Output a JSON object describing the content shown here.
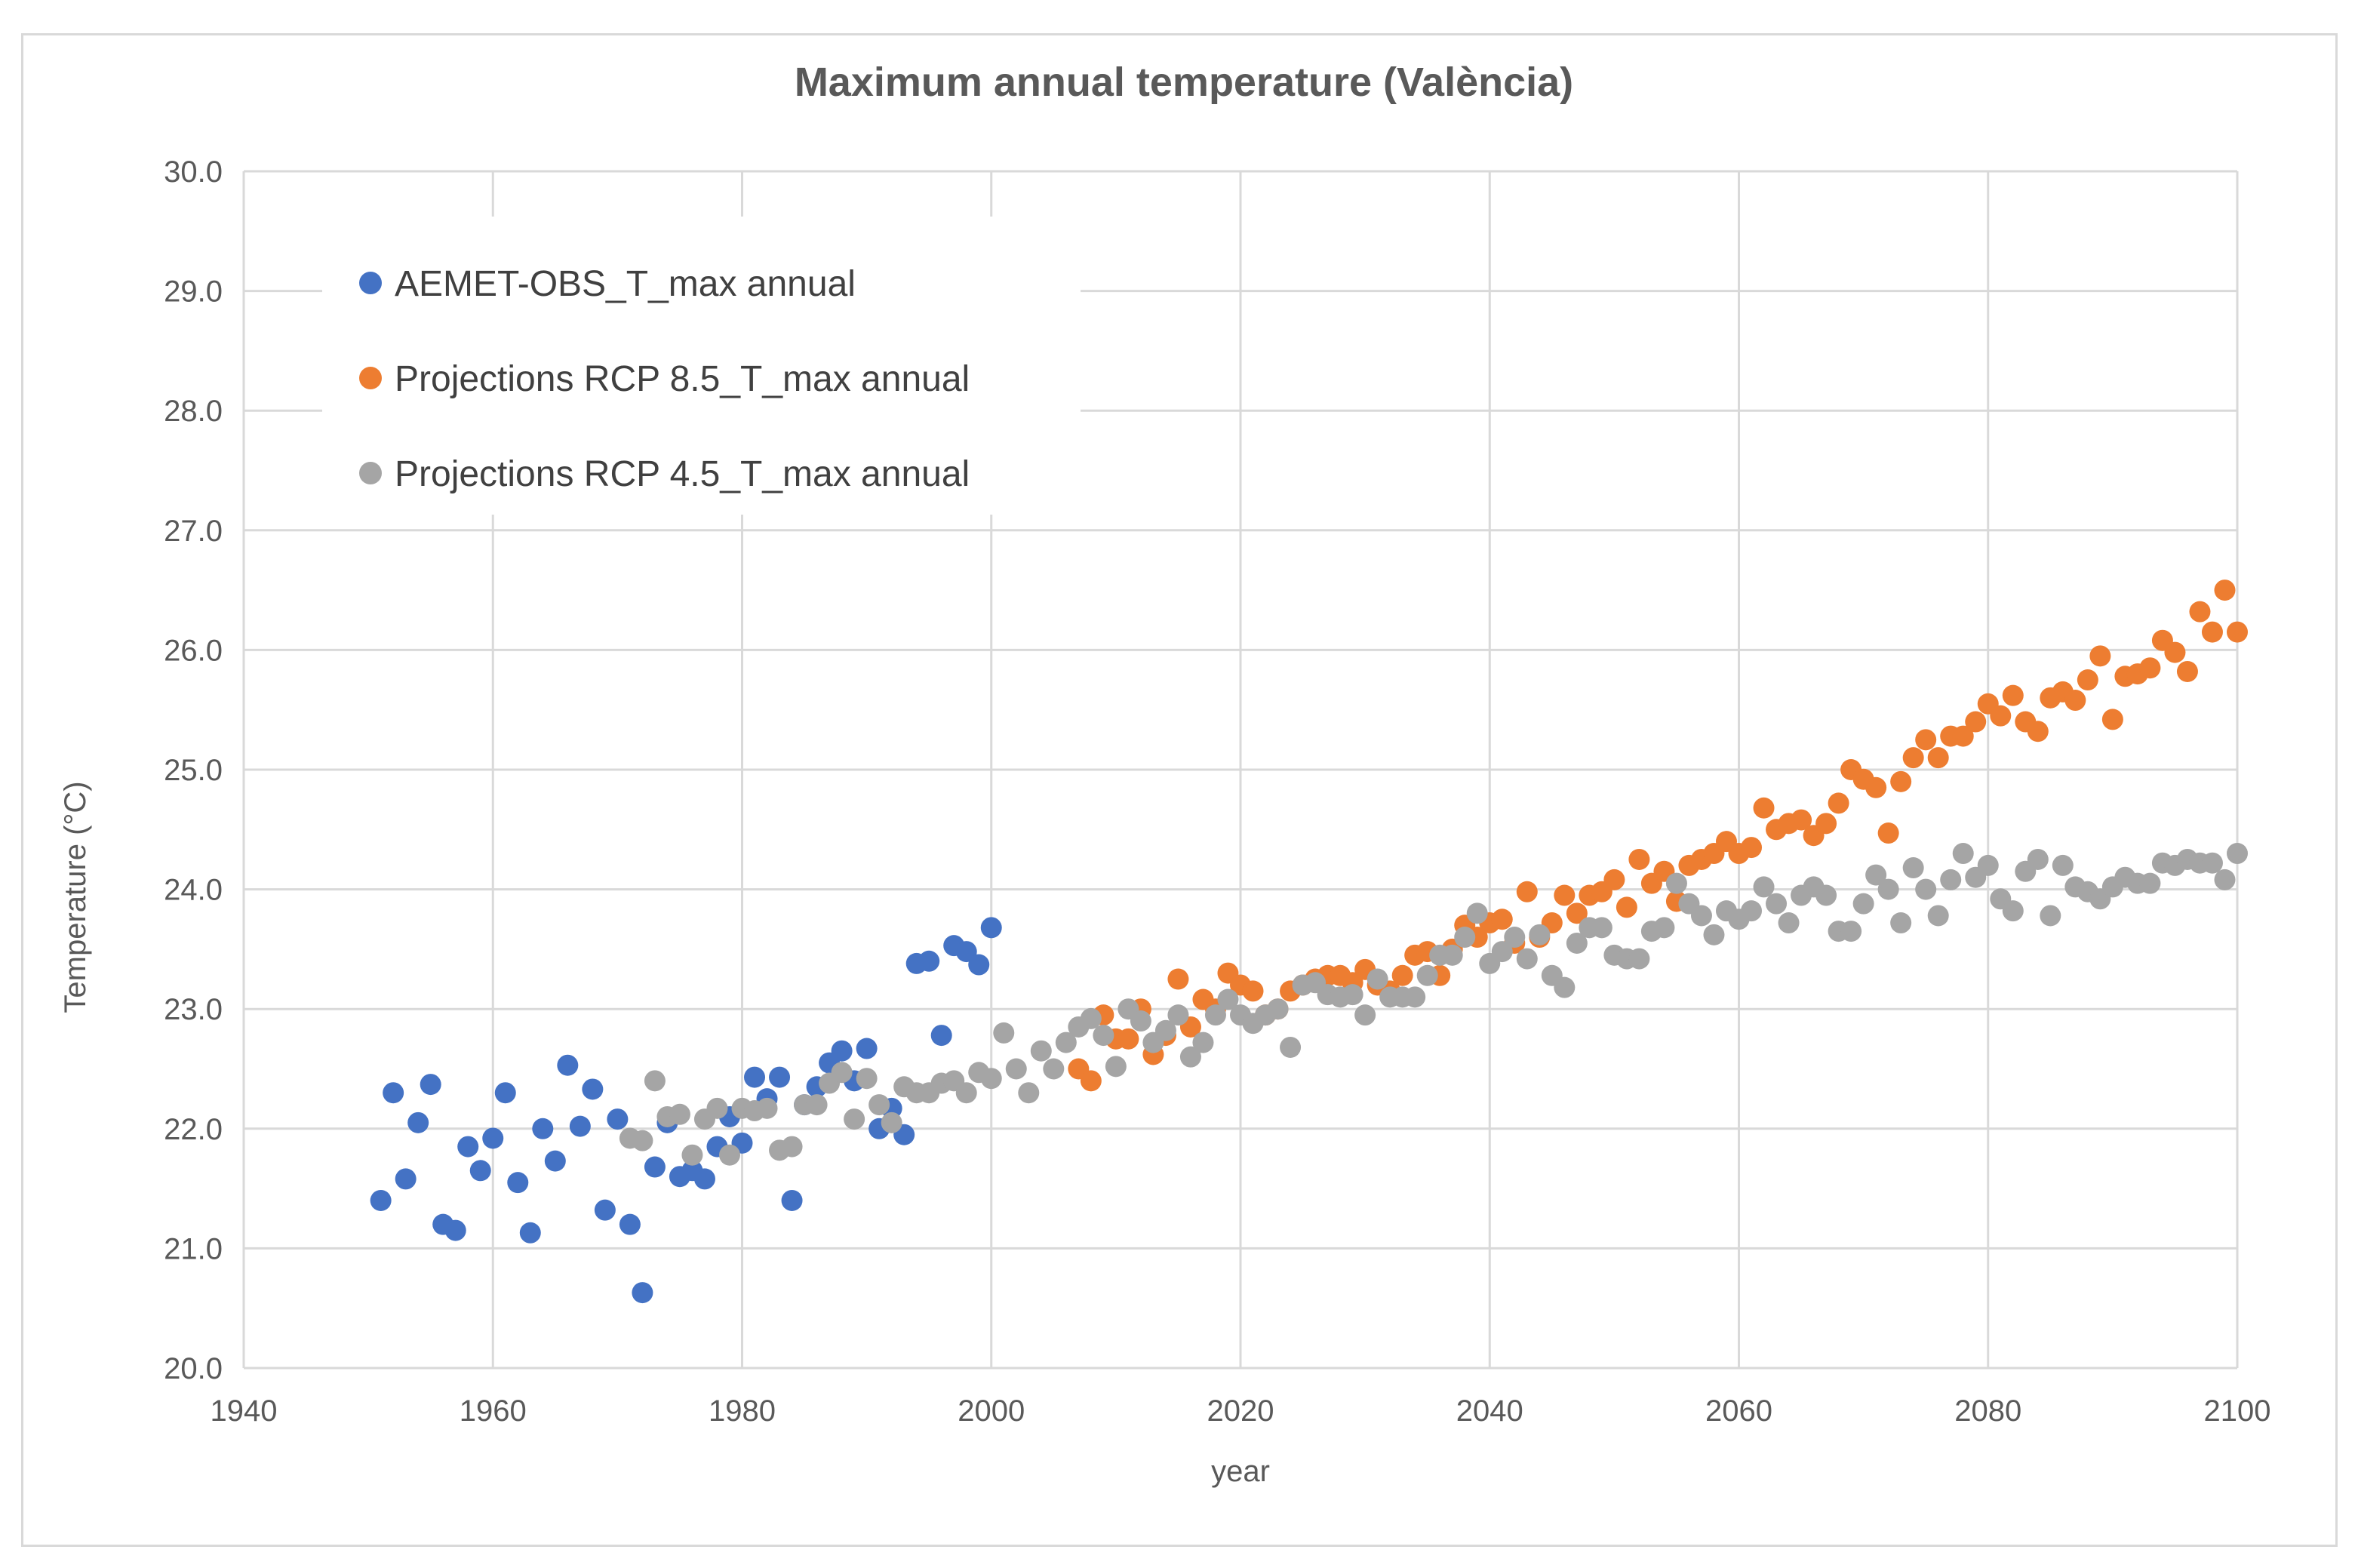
{
  "chart_data": {
    "type": "scatter",
    "title": "Maximum annual temperature (València)",
    "xlabel": "year",
    "ylabel": "Temperature (°C)",
    "xlim": [
      1940,
      2100
    ],
    "ylim": [
      20.0,
      30.0
    ],
    "x_ticks": [
      "1940",
      "1960",
      "1980",
      "2000",
      "2020",
      "2040",
      "2060",
      "2080",
      "2100"
    ],
    "y_ticks": [
      "20.0",
      "21.0",
      "22.0",
      "23.0",
      "24.0",
      "25.0",
      "26.0",
      "27.0",
      "28.0",
      "29.0",
      "30.0"
    ],
    "grid": true,
    "legend_position": "top-left",
    "series": [
      {
        "name": "AEMET-OBS_T_max annual",
        "color": "#4472c4",
        "x": [
          1951,
          1952,
          1953,
          1954,
          1955,
          1956,
          1957,
          1958,
          1959,
          1960,
          1961,
          1962,
          1963,
          1964,
          1965,
          1966,
          1967,
          1968,
          1969,
          1970,
          1971,
          1972,
          1973,
          1974,
          1975,
          1976,
          1977,
          1978,
          1979,
          1980,
          1981,
          1982,
          1983,
          1984,
          1985,
          1986,
          1987,
          1988,
          1989,
          1990,
          1991,
          1992,
          1993,
          1994,
          1995,
          1996,
          1997,
          1998,
          1999,
          2000
        ],
        "y": [
          21.4,
          22.3,
          21.58,
          22.05,
          22.37,
          21.2,
          21.15,
          21.85,
          21.65,
          21.92,
          22.3,
          21.55,
          21.13,
          22.0,
          21.73,
          22.53,
          22.02,
          22.33,
          21.32,
          22.08,
          21.2,
          20.63,
          21.68,
          22.05,
          21.6,
          21.65,
          21.58,
          21.85,
          22.1,
          21.88,
          22.43,
          22.25,
          22.43,
          21.4,
          22.2,
          22.35,
          22.55,
          22.65,
          22.4,
          22.67,
          22.0,
          22.17,
          21.95,
          23.38,
          23.4,
          22.78,
          23.53,
          23.48,
          23.37,
          23.68
        ]
      },
      {
        "name": "Projections RCP 8.5_T_max annual",
        "color": "#ed7d31",
        "x": [
          2007,
          2008,
          2009,
          2010,
          2011,
          2012,
          2013,
          2014,
          2015,
          2016,
          2017,
          2018,
          2019,
          2020,
          2021,
          2022,
          2023,
          2024,
          2025,
          2026,
          2027,
          2028,
          2029,
          2030,
          2031,
          2032,
          2033,
          2034,
          2035,
          2036,
          2037,
          2038,
          2039,
          2040,
          2041,
          2042,
          2043,
          2044,
          2045,
          2046,
          2047,
          2048,
          2049,
          2050,
          2051,
          2052,
          2053,
          2054,
          2055,
          2056,
          2057,
          2058,
          2059,
          2060,
          2061,
          2062,
          2063,
          2064,
          2065,
          2066,
          2067,
          2068,
          2069,
          2070,
          2071,
          2072,
          2073,
          2074,
          2075,
          2076,
          2077,
          2078,
          2079,
          2080,
          2081,
          2082,
          2083,
          2084,
          2085,
          2086,
          2087,
          2088,
          2089,
          2090,
          2091,
          2092,
          2093,
          2094,
          2095,
          2096,
          2097,
          2098,
          2099,
          2100
        ],
        "y": [
          22.5,
          22.4,
          22.95,
          22.75,
          22.75,
          23.0,
          22.62,
          22.78,
          23.25,
          22.85,
          23.08,
          23.0,
          23.3,
          23.2,
          23.15,
          22.95,
          23.0,
          23.15,
          23.2,
          23.25,
          23.28,
          23.28,
          23.22,
          23.33,
          23.2,
          23.15,
          23.28,
          23.45,
          23.48,
          23.28,
          23.5,
          23.7,
          23.6,
          23.72,
          23.75,
          23.55,
          23.98,
          23.6,
          23.72,
          23.95,
          23.8,
          23.95,
          23.98,
          24.08,
          23.85,
          24.25,
          24.05,
          24.15,
          23.9,
          24.2,
          24.25,
          24.3,
          24.4,
          24.3,
          24.35,
          24.68,
          24.5,
          24.55,
          24.58,
          24.45,
          24.55,
          24.72,
          25.0,
          24.92,
          24.85,
          24.47,
          24.9,
          25.1,
          25.25,
          25.1,
          25.28,
          25.28,
          25.4,
          25.55,
          25.45,
          25.62,
          25.4,
          25.32,
          25.6,
          25.65,
          25.58,
          25.75,
          25.95,
          25.42,
          25.78,
          25.8,
          25.85,
          26.08,
          25.98,
          25.82,
          26.32,
          26.15,
          26.5,
          26.15
        ]
      },
      {
        "name": "Projections RCP 4.5_T_max annual",
        "color": "#a5a5a5",
        "x": [
          1971,
          1972,
          1973,
          1974,
          1975,
          1976,
          1977,
          1978,
          1979,
          1980,
          1981,
          1982,
          1983,
          1984,
          1985,
          1986,
          1987,
          1988,
          1989,
          1990,
          1991,
          1992,
          1993,
          1994,
          1995,
          1996,
          1997,
          1998,
          1999,
          2000,
          2001,
          2002,
          2003,
          2004,
          2005,
          2006,
          2007,
          2008,
          2009,
          2010,
          2011,
          2012,
          2013,
          2014,
          2015,
          2016,
          2017,
          2018,
          2019,
          2020,
          2021,
          2022,
          2023,
          2024,
          2025,
          2026,
          2027,
          2028,
          2029,
          2030,
          2031,
          2032,
          2033,
          2034,
          2035,
          2036,
          2037,
          2038,
          2039,
          2040,
          2041,
          2042,
          2043,
          2044,
          2045,
          2046,
          2047,
          2048,
          2049,
          2050,
          2051,
          2052,
          2053,
          2054,
          2055,
          2056,
          2057,
          2058,
          2059,
          2060,
          2061,
          2062,
          2063,
          2064,
          2065,
          2066,
          2067,
          2068,
          2069,
          2070,
          2071,
          2072,
          2073,
          2074,
          2075,
          2076,
          2077,
          2078,
          2079,
          2080,
          2081,
          2082,
          2083,
          2084,
          2085,
          2086,
          2087,
          2088,
          2089,
          2090,
          2091,
          2092,
          2093,
          2094,
          2095,
          2096,
          2097,
          2098,
          2099,
          2100
        ],
        "y": [
          21.92,
          21.9,
          22.4,
          22.1,
          22.12,
          21.78,
          22.08,
          22.17,
          21.78,
          22.17,
          22.15,
          22.17,
          21.82,
          21.85,
          22.2,
          22.2,
          22.38,
          22.47,
          22.08,
          22.42,
          22.2,
          22.05,
          22.35,
          22.3,
          22.3,
          22.38,
          22.4,
          22.3,
          22.47,
          22.42,
          22.8,
          22.5,
          22.3,
          22.65,
          22.5,
          22.72,
          22.85,
          22.92,
          22.78,
          22.52,
          23.0,
          22.9,
          22.72,
          22.82,
          22.95,
          22.6,
          22.72,
          22.95,
          23.08,
          22.95,
          22.88,
          22.95,
          23.0,
          22.68,
          23.2,
          23.22,
          23.12,
          23.1,
          23.12,
          22.95,
          23.25,
          23.1,
          23.1,
          23.1,
          23.28,
          23.45,
          23.45,
          23.6,
          23.8,
          23.38,
          23.48,
          23.6,
          23.42,
          23.62,
          23.28,
          23.18,
          23.55,
          23.68,
          23.68,
          23.45,
          23.42,
          23.42,
          23.65,
          23.68,
          24.05,
          23.88,
          23.78,
          23.62,
          23.82,
          23.75,
          23.82,
          24.02,
          23.88,
          23.72,
          23.95,
          24.02,
          23.95,
          23.65,
          23.65,
          23.88,
          24.12,
          24.0,
          23.72,
          24.18,
          24.0,
          23.78,
          24.08,
          24.3,
          24.1,
          24.2,
          23.92,
          23.82,
          24.15,
          24.25,
          23.78,
          24.2,
          24.02,
          23.98,
          23.92,
          24.02,
          24.1,
          24.05,
          24.05,
          24.22,
          24.2,
          24.25,
          24.22,
          24.22,
          24.08,
          24.3
        ]
      }
    ]
  }
}
